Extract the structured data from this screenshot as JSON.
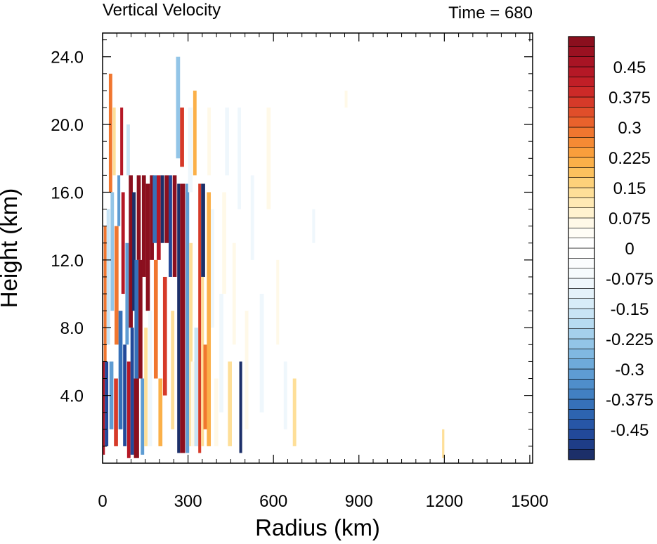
{
  "chart_data": {
    "type": "heatmap",
    "title": "Vertical Velocity",
    "subtitle": "Time = 680",
    "xlabel": "Radius (km)",
    "ylabel": "Height (km)",
    "xlim": [
      0,
      1510
    ],
    "ylim": [
      0,
      25.4
    ],
    "x_ticks": [
      0,
      300,
      600,
      900,
      1200,
      1500
    ],
    "x_tick_labels": [
      "0",
      "300",
      "600",
      "900",
      "1200",
      "1500"
    ],
    "y_ticks": [
      4,
      8,
      12,
      16,
      20,
      24
    ],
    "y_tick_labels": [
      "4.0",
      "8.0",
      "12.0",
      "16.0",
      "20.0",
      "24.0"
    ],
    "grid": false,
    "colorbar": {
      "placement": "right",
      "levels": [
        -0.525,
        -0.5,
        -0.475,
        -0.45,
        -0.425,
        -0.4,
        -0.375,
        -0.35,
        -0.325,
        -0.3,
        -0.275,
        -0.25,
        -0.225,
        -0.2,
        -0.175,
        -0.15,
        -0.125,
        -0.1,
        -0.075,
        -0.05,
        -0.025,
        0,
        0.025,
        0.05,
        0.075,
        0.1,
        0.125,
        0.15,
        0.175,
        0.2,
        0.225,
        0.25,
        0.275,
        0.3,
        0.325,
        0.35,
        0.375,
        0.4,
        0.425,
        0.45,
        0.475,
        0.5,
        0.525
      ],
      "labels": [
        "0.45",
        "0.375",
        "0.3",
        "0.225",
        "0.15",
        "0.075",
        "0",
        "-0.075",
        "-0.15",
        "-0.225",
        "-0.3",
        "-0.375",
        "-0.45"
      ],
      "label_values": [
        0.45,
        0.375,
        0.3,
        0.225,
        0.15,
        0.075,
        0,
        -0.075,
        -0.15,
        -0.225,
        -0.3,
        -0.375,
        -0.45
      ],
      "colors": [
        "#1c2f69",
        "#1e3d87",
        "#22499a",
        "#2756a6",
        "#2d64b0",
        "#3671b9",
        "#4280c2",
        "#4f8ecb",
        "#5e9cd3",
        "#6eaada",
        "#80b8e1",
        "#93c5e7",
        "#a5d0ec",
        "#b7dbf1",
        "#c8e4f5",
        "#d7ecf8",
        "#e4f2fa",
        "#eff7fc",
        "#f6fbfd",
        "#fbfdfe",
        "#ffffff",
        "#ffffff",
        "#fffdf6",
        "#fff9e8",
        "#fff2cf",
        "#ffe9b4",
        "#fedf98",
        "#fdd17a",
        "#fcc15e",
        "#fbb049",
        "#f99e3c",
        "#f58a34",
        "#f0762f",
        "#e9622c",
        "#e04e2a",
        "#d63a29",
        "#cc2a28",
        "#c11f27",
        "#b51826",
        "#a81424",
        "#9a1121",
        "#8b0f1e"
      ]
    },
    "cells": [
      {
        "x0": 0,
        "x1": 8,
        "y0": 0.5,
        "y1": 6,
        "v": 0.45
      },
      {
        "x0": 4,
        "x1": 14,
        "y0": 6,
        "y1": 14,
        "v": 0.3
      },
      {
        "x0": 8,
        "x1": 20,
        "y0": 1,
        "y1": 6,
        "v": -0.45
      },
      {
        "x0": 14,
        "x1": 26,
        "y0": 7,
        "y1": 15,
        "v": -0.15
      },
      {
        "x0": 22,
        "x1": 34,
        "y0": 16,
        "y1": 23,
        "v": 0.3
      },
      {
        "x0": 24,
        "x1": 38,
        "y0": 2,
        "y1": 6,
        "v": -0.3
      },
      {
        "x0": 28,
        "x1": 40,
        "y0": 9,
        "y1": 16,
        "v": -0.225
      },
      {
        "x0": 36,
        "x1": 46,
        "y0": 17,
        "y1": 21,
        "v": 0.15
      },
      {
        "x0": 40,
        "x1": 54,
        "y0": 1,
        "y1": 5,
        "v": 0.375
      },
      {
        "x0": 42,
        "x1": 56,
        "y0": 7,
        "y1": 14,
        "v": 0.3
      },
      {
        "x0": 52,
        "x1": 62,
        "y0": 14,
        "y1": 17,
        "v": -0.3
      },
      {
        "x0": 56,
        "x1": 70,
        "y0": 2,
        "y1": 9,
        "v": -0.375
      },
      {
        "x0": 62,
        "x1": 72,
        "y0": 17,
        "y1": 21,
        "v": 0.45
      },
      {
        "x0": 66,
        "x1": 78,
        "y0": 10,
        "y1": 16,
        "v": 0.45
      },
      {
        "x0": 72,
        "x1": 84,
        "y0": 1,
        "y1": 7,
        "v": -0.45
      },
      {
        "x0": 80,
        "x1": 92,
        "y0": 7,
        "y1": 13,
        "v": -0.3
      },
      {
        "x0": 84,
        "x1": 96,
        "y0": 17,
        "y1": 20,
        "v": -0.15
      },
      {
        "x0": 86,
        "x1": 98,
        "y0": 0.3,
        "y1": 6,
        "v": 0.45
      },
      {
        "x0": 92,
        "x1": 106,
        "y0": 8,
        "y1": 17,
        "v": 0.525
      },
      {
        "x0": 98,
        "x1": 110,
        "y0": 0.5,
        "y1": 8,
        "v": -0.45
      },
      {
        "x0": 104,
        "x1": 116,
        "y0": 9,
        "y1": 16,
        "v": -0.525
      },
      {
        "x0": 110,
        "x1": 128,
        "y0": 0.3,
        "y1": 5,
        "v": 0.525
      },
      {
        "x0": 112,
        "x1": 126,
        "y0": 5,
        "y1": 12,
        "v": -0.375
      },
      {
        "x0": 120,
        "x1": 134,
        "y0": 12,
        "y1": 17,
        "v": 0.525
      },
      {
        "x0": 126,
        "x1": 140,
        "y0": 5,
        "y1": 12,
        "v": 0.525
      },
      {
        "x0": 134,
        "x1": 146,
        "y0": 0.5,
        "y1": 5,
        "v": -0.3
      },
      {
        "x0": 138,
        "x1": 152,
        "y0": 11,
        "y1": 17,
        "v": 0.525
      },
      {
        "x0": 146,
        "x1": 158,
        "y0": 1,
        "y1": 8,
        "v": 0.15
      },
      {
        "x0": 152,
        "x1": 166,
        "y0": 9,
        "y1": 16.5,
        "v": 0.525
      },
      {
        "x0": 160,
        "x1": 174,
        "y0": 1,
        "y1": 9,
        "v": -0.075
      },
      {
        "x0": 166,
        "x1": 180,
        "y0": 12,
        "y1": 17,
        "v": 0.525
      },
      {
        "x0": 176,
        "x1": 190,
        "y0": 13,
        "y1": 17,
        "v": -0.375
      },
      {
        "x0": 180,
        "x1": 194,
        "y0": 5,
        "y1": 12,
        "v": 0.3
      },
      {
        "x0": 190,
        "x1": 204,
        "y0": 12,
        "y1": 17,
        "v": 0.45
      },
      {
        "x0": 196,
        "x1": 210,
        "y0": 1,
        "y1": 5,
        "v": 0.225
      },
      {
        "x0": 204,
        "x1": 216,
        "y0": 13,
        "y1": 17,
        "v": -0.525
      },
      {
        "x0": 212,
        "x1": 226,
        "y0": 4,
        "y1": 11,
        "v": 0.375
      },
      {
        "x0": 218,
        "x1": 232,
        "y0": 13,
        "y1": 17,
        "v": 0.525
      },
      {
        "x0": 232,
        "x1": 244,
        "y0": 11,
        "y1": 17,
        "v": -0.45
      },
      {
        "x0": 240,
        "x1": 252,
        "y0": 2,
        "y1": 9,
        "v": 0.15
      },
      {
        "x0": 246,
        "x1": 260,
        "y0": 11,
        "y1": 17,
        "v": 0.525
      },
      {
        "x0": 262,
        "x1": 272,
        "y0": 0.6,
        "y1": 16.5,
        "v": -0.525
      },
      {
        "x0": 272,
        "x1": 290,
        "y0": 0.6,
        "y1": 16.5,
        "v": 0.525
      },
      {
        "x0": 258,
        "x1": 272,
        "y0": 18,
        "y1": 24,
        "v": -0.225
      },
      {
        "x0": 272,
        "x1": 286,
        "y0": 17.5,
        "y1": 21,
        "v": 0.375
      },
      {
        "x0": 292,
        "x1": 304,
        "y0": 0.6,
        "y1": 16.5,
        "v": -0.3
      },
      {
        "x0": 304,
        "x1": 316,
        "y0": 1,
        "y1": 13,
        "v": 0.15
      },
      {
        "x0": 310,
        "x1": 322,
        "y0": 1,
        "y1": 6,
        "v": 0.075
      },
      {
        "x0": 300,
        "x1": 316,
        "y0": 16,
        "y1": 21,
        "v": -0.075
      },
      {
        "x0": 318,
        "x1": 330,
        "y0": 17,
        "y1": 22,
        "v": 0.225
      },
      {
        "x0": 322,
        "x1": 336,
        "y0": 1,
        "y1": 8,
        "v": -0.15
      },
      {
        "x0": 336,
        "x1": 346,
        "y0": 0.6,
        "y1": 16.5,
        "v": 0.375
      },
      {
        "x0": 346,
        "x1": 360,
        "y0": 11,
        "y1": 16.5,
        "v": -0.525
      },
      {
        "x0": 346,
        "x1": 356,
        "y0": 1,
        "y1": 11,
        "v": 0.15
      },
      {
        "x0": 354,
        "x1": 368,
        "y0": 2,
        "y1": 7,
        "v": 0.3
      },
      {
        "x0": 366,
        "x1": 380,
        "y0": 1,
        "y1": 16,
        "v": 0.225
      },
      {
        "x0": 368,
        "x1": 380,
        "y0": 17,
        "y1": 21,
        "v": 0.075
      },
      {
        "x0": 380,
        "x1": 392,
        "y0": 8,
        "y1": 15,
        "v": -0.075
      },
      {
        "x0": 392,
        "x1": 406,
        "y0": 1,
        "y1": 5,
        "v": 0.075
      },
      {
        "x0": 410,
        "x1": 424,
        "y0": 3,
        "y1": 10,
        "v": -0.075
      },
      {
        "x0": 420,
        "x1": 434,
        "y0": 10,
        "y1": 16,
        "v": 0.075
      },
      {
        "x0": 430,
        "x1": 444,
        "y0": 17,
        "y1": 21,
        "v": -0.075
      },
      {
        "x0": 440,
        "x1": 454,
        "y0": 1,
        "y1": 6,
        "v": 0.15
      },
      {
        "x0": 456,
        "x1": 468,
        "y0": 7,
        "y1": 13,
        "v": 0.075
      },
      {
        "x0": 480,
        "x1": 490,
        "y0": 0.6,
        "y1": 6,
        "v": -0.525
      },
      {
        "x0": 474,
        "x1": 486,
        "y0": 15,
        "y1": 21,
        "v": -0.075
      },
      {
        "x0": 500,
        "x1": 512,
        "y0": 2,
        "y1": 9,
        "v": 0.075
      },
      {
        "x0": 520,
        "x1": 532,
        "y0": 12,
        "y1": 17,
        "v": -0.075
      },
      {
        "x0": 552,
        "x1": 566,
        "y0": 3,
        "y1": 10,
        "v": -0.075
      },
      {
        "x0": 576,
        "x1": 590,
        "y0": 15,
        "y1": 21,
        "v": 0.075
      },
      {
        "x0": 610,
        "x1": 620,
        "y0": 7,
        "y1": 12,
        "v": 0.075
      },
      {
        "x0": 636,
        "x1": 648,
        "y0": 2,
        "y1": 6,
        "v": -0.075
      },
      {
        "x0": 668,
        "x1": 680,
        "y0": 1,
        "y1": 5,
        "v": 0.15
      },
      {
        "x0": 736,
        "x1": 746,
        "y0": 13,
        "y1": 15,
        "v": -0.075
      },
      {
        "x0": 850,
        "x1": 860,
        "y0": 21,
        "y1": 22,
        "v": 0.075
      },
      {
        "x0": 1192,
        "x1": 1200,
        "y0": 0.3,
        "y1": 2,
        "v": 0.15
      }
    ]
  }
}
